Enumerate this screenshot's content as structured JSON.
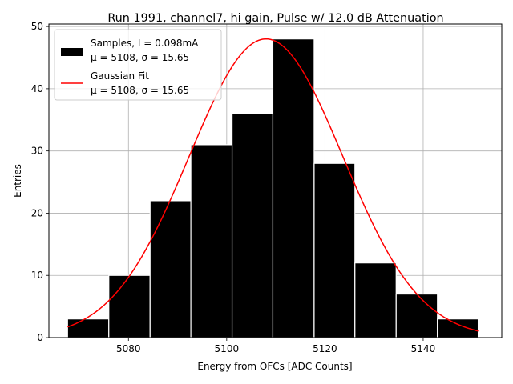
{
  "chart_data": {
    "type": "bar",
    "title": "Run 1991, channel7, hi gain, Pulse w/ 12.0 dB Attenuation",
    "xlabel": "Energy from OFCs [ADC Counts]",
    "ylabel": "Entries",
    "xlim": [
      5063.8,
      5156.0
    ],
    "ylim": [
      0,
      50.4
    ],
    "xticks": [
      5080,
      5100,
      5120,
      5140
    ],
    "yticks": [
      0,
      10,
      20,
      30,
      40,
      50
    ],
    "grid": true,
    "legend_position": "upper-left",
    "bin_edges": [
      5067.6,
      5076.0,
      5084.4,
      5092.7,
      5101.1,
      5109.4,
      5117.8,
      5126.1,
      5134.5,
      5142.9,
      5151.2
    ],
    "counts": [
      3,
      10,
      22,
      31,
      36,
      48,
      28,
      12,
      7,
      3
    ],
    "histogram": {
      "color": "#000000",
      "edge_color": "#ffffff",
      "label_line1": "Samples, I = 0.098mA",
      "label_line2": "μ = 5108, σ = 15.65"
    },
    "fit": {
      "type": "gaussian",
      "color": "#ff0000",
      "mu": 5108,
      "sigma": 15.65,
      "amplitude": 48,
      "x_range": [
        5067.6,
        5151.2
      ],
      "label_line1": "Gaussian Fit",
      "label_line2": "μ = 5108, σ = 15.65"
    }
  }
}
